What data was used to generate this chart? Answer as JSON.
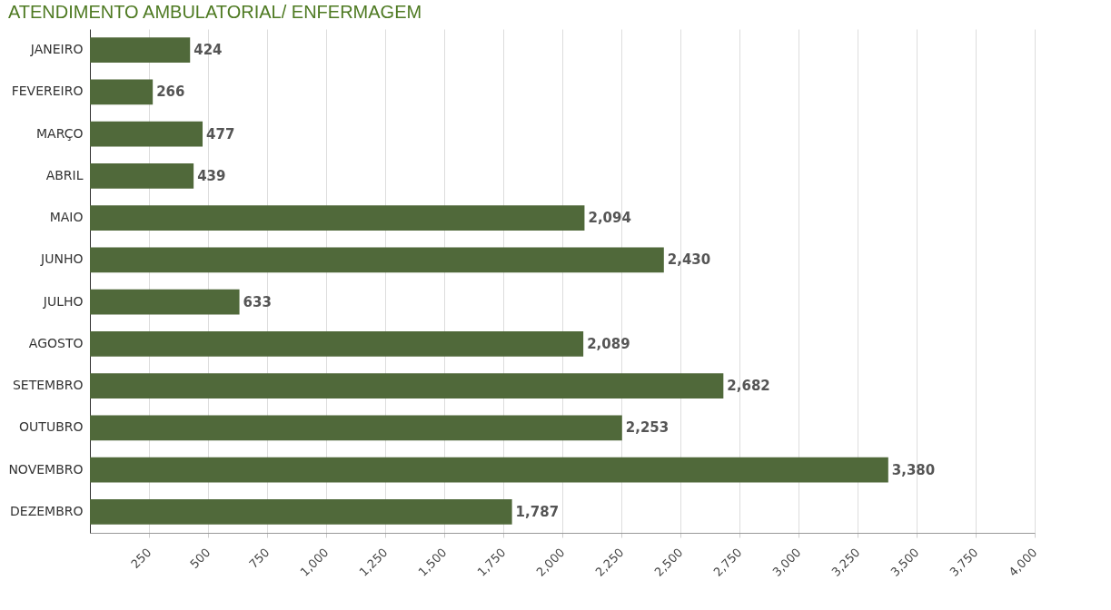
{
  "chart_data": {
    "type": "bar",
    "orientation": "horizontal",
    "title": "ATENDIMENTO AMBULATORIAL/ ENFERMAGEM",
    "categories": [
      "JANEIRO",
      "FEVEREIRO",
      "MARÇO",
      "ABRIL",
      "MAIO",
      "JUNHO",
      "JULHO",
      "AGOSTO",
      "SETEMBRO",
      "OUTUBRO",
      "NOVEMBRO",
      "DEZEMBRO"
    ],
    "values": [
      424,
      266,
      477,
      439,
      2094,
      2430,
      633,
      2089,
      2682,
      2253,
      3380,
      1787
    ],
    "value_labels": [
      "424",
      "266",
      "477",
      "439",
      "2,094",
      "2,430",
      "633",
      "2,089",
      "2,682",
      "2,253",
      "3,380",
      "1,787"
    ],
    "color": "#50693a",
    "xlim": [
      0,
      4000
    ],
    "xticks": [
      250,
      500,
      750,
      {
        "value": 1000,
        "label": "1,000"
      },
      {
        "value": 1250,
        "label": "1,250"
      },
      {
        "value": 1500,
        "label": "1,500"
      },
      {
        "value": 1750,
        "label": "1,750"
      },
      {
        "value": 2000,
        "label": "2,000"
      },
      {
        "value": 2250,
        "label": "2,250"
      },
      {
        "value": 2500,
        "label": "2,500"
      },
      {
        "value": 2750,
        "label": "2,750"
      },
      {
        "value": 3000,
        "label": "3,000"
      },
      {
        "value": 3250,
        "label": "3,250"
      },
      {
        "value": 3500,
        "label": "3,500"
      },
      {
        "value": 3750,
        "label": "3,750"
      },
      {
        "value": 4000,
        "label": "4,000"
      }
    ],
    "grid": "x"
  }
}
